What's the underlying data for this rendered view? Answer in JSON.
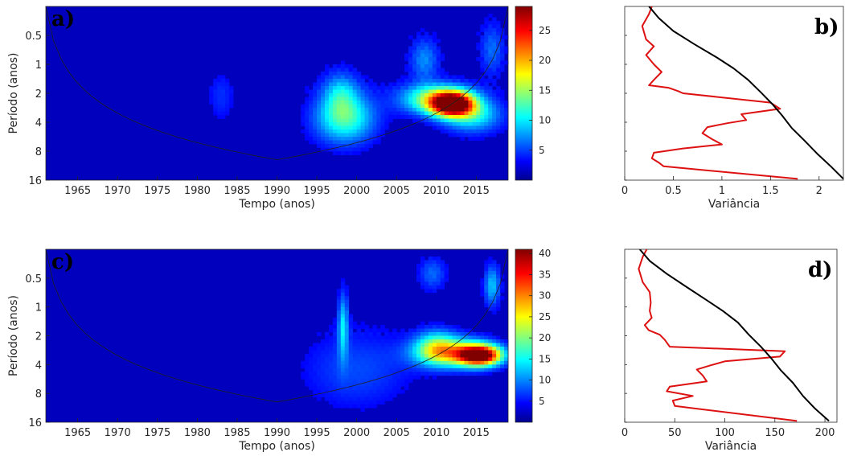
{
  "chart_data": [
    {
      "panel": "a)",
      "type": "heatmap",
      "xlabel": "Tempo (anos)",
      "ylabel": "Período (anos)",
      "xticks": [
        1965,
        1970,
        1975,
        1980,
        1985,
        1990,
        1995,
        2000,
        2005,
        2010,
        2015
      ],
      "xlim": [
        1961,
        2019
      ],
      "yticks": [
        0.5,
        1,
        2,
        4,
        8,
        16
      ],
      "ylim": [
        0.25,
        16
      ],
      "yscale": "log2",
      "colorbar": {
        "ticks": [
          5,
          10,
          15,
          20,
          25
        ],
        "lim": [
          0,
          29
        ]
      },
      "hotspots": [
        {
          "x": 2012,
          "period": 2.6,
          "power": 29,
          "sx": 1.8,
          "sy": 0.28
        },
        {
          "x": 2010,
          "period": 2.3,
          "power": 14,
          "sx": 3.0,
          "sy": 0.35
        },
        {
          "x": 1998.5,
          "period": 3.6,
          "power": 11,
          "sx": 2.6,
          "sy": 0.6
        },
        {
          "x": 1998,
          "period": 2.0,
          "power": 6,
          "sx": 1.5,
          "sy": 0.5
        },
        {
          "x": 2014.5,
          "period": 3.4,
          "power": 9,
          "sx": 2.5,
          "sy": 0.4
        },
        {
          "x": 2008.5,
          "period": 0.9,
          "power": 5,
          "sx": 1.2,
          "sy": 0.5
        },
        {
          "x": 2017,
          "period": 0.7,
          "power": 4,
          "sx": 1.0,
          "sy": 0.6
        },
        {
          "x": 1983,
          "period": 2.2,
          "power": 2.5,
          "sx": 1.2,
          "sy": 0.6
        }
      ]
    },
    {
      "panel": "b)",
      "type": "line",
      "xlabel": "Variância",
      "xticks": [
        0,
        0.5,
        1,
        1.5,
        2
      ],
      "xlim": [
        0,
        2.25
      ],
      "ylim": [
        0.25,
        16
      ],
      "yscale": "log2",
      "series": [
        {
          "color": "#dd1111",
          "points": [
            [
              0.28,
              0.25
            ],
            [
              0.25,
              0.3
            ],
            [
              0.18,
              0.4
            ],
            [
              0.22,
              0.55
            ],
            [
              0.3,
              0.65
            ],
            [
              0.22,
              0.8
            ],
            [
              0.3,
              1.0
            ],
            [
              0.38,
              1.2
            ],
            [
              0.3,
              1.45
            ],
            [
              0.25,
              1.65
            ],
            [
              0.45,
              1.75
            ],
            [
              0.55,
              1.9
            ],
            [
              0.6,
              2.0
            ],
            [
              1.5,
              2.5
            ],
            [
              1.6,
              2.9
            ],
            [
              1.2,
              3.3
            ],
            [
              1.25,
              3.8
            ],
            [
              1.05,
              4.1
            ],
            [
              0.85,
              4.5
            ],
            [
              0.8,
              5.2
            ],
            [
              0.9,
              6.0
            ],
            [
              1.0,
              6.8
            ],
            [
              0.6,
              7.5
            ],
            [
              0.3,
              8.3
            ],
            [
              0.28,
              9.5
            ],
            [
              0.35,
              10.5
            ],
            [
              0.4,
              11.5
            ],
            [
              1.78,
              15.5
            ]
          ]
        },
        {
          "color": "#000000",
          "points": [
            [
              0.25,
              0.25
            ],
            [
              0.35,
              0.33
            ],
            [
              0.5,
              0.45
            ],
            [
              0.72,
              0.62
            ],
            [
              0.95,
              0.85
            ],
            [
              1.12,
              1.1
            ],
            [
              1.27,
              1.45
            ],
            [
              1.4,
              1.95
            ],
            [
              1.52,
              2.6
            ],
            [
              1.62,
              3.4
            ],
            [
              1.72,
              4.6
            ],
            [
              1.85,
              6.2
            ],
            [
              1.98,
              8.5
            ],
            [
              2.12,
              11.5
            ],
            [
              2.25,
              15.5
            ]
          ]
        }
      ]
    },
    {
      "panel": "c)",
      "type": "heatmap",
      "xlabel": "Tempo (anos)",
      "ylabel": "Período (anos)",
      "xticks": [
        1965,
        1970,
        1975,
        1980,
        1985,
        1990,
        1995,
        2000,
        2005,
        2010,
        2015
      ],
      "xlim": [
        1961,
        2019
      ],
      "yticks": [
        0.5,
        1,
        2,
        4,
        8,
        16
      ],
      "ylim": [
        0.25,
        16
      ],
      "yscale": "log2",
      "colorbar": {
        "ticks": [
          5,
          10,
          15,
          20,
          25,
          30,
          35,
          40
        ],
        "lim": [
          0,
          41
        ]
      },
      "hotspots": [
        {
          "x": 2015.5,
          "period": 3.2,
          "power": 41,
          "sx": 1.9,
          "sy": 0.25
        },
        {
          "x": 2012,
          "period": 3.0,
          "power": 20,
          "sx": 3.2,
          "sy": 0.35
        },
        {
          "x": 2010,
          "period": 2.6,
          "power": 12,
          "sx": 1.8,
          "sy": 0.4
        },
        {
          "x": 1998.3,
          "period": 1.6,
          "power": 11,
          "sx": 0.45,
          "sy": 0.8
        },
        {
          "x": 2017,
          "period": 0.6,
          "power": 10,
          "sx": 0.7,
          "sy": 0.5
        },
        {
          "x": 2009.5,
          "period": 0.45,
          "power": 6,
          "sx": 1.2,
          "sy": 0.4
        },
        {
          "x": 2000,
          "period": 4.5,
          "power": 5,
          "sx": 5.0,
          "sy": 1.0
        }
      ]
    },
    {
      "panel": "d)",
      "type": "line",
      "xlabel": "Variância",
      "xticks": [
        0,
        50,
        100,
        150,
        200
      ],
      "xlim": [
        0,
        212
      ],
      "ylim": [
        0.25,
        16
      ],
      "yscale": "log2",
      "series": [
        {
          "color": "#dd1111",
          "points": [
            [
              22,
              0.25
            ],
            [
              18,
              0.3
            ],
            [
              14,
              0.4
            ],
            [
              18,
              0.55
            ],
            [
              25,
              0.7
            ],
            [
              26,
              0.9
            ],
            [
              25,
              1.1
            ],
            [
              27,
              1.3
            ],
            [
              20,
              1.55
            ],
            [
              24,
              1.75
            ],
            [
              35,
              1.95
            ],
            [
              40,
              2.2
            ],
            [
              45,
              2.6
            ],
            [
              160,
              2.9
            ],
            [
              155,
              3.3
            ],
            [
              100,
              3.7
            ],
            [
              85,
              4.1
            ],
            [
              72,
              4.5
            ],
            [
              78,
              5.2
            ],
            [
              82,
              6.0
            ],
            [
              45,
              6.8
            ],
            [
              42,
              7.6
            ],
            [
              68,
              8.5
            ],
            [
              48,
              9.5
            ],
            [
              50,
              10.8
            ],
            [
              70,
              11.5
            ],
            [
              172,
              15.5
            ]
          ]
        },
        {
          "color": "#000000",
          "points": [
            [
              15,
              0.25
            ],
            [
              25,
              0.33
            ],
            [
              42,
              0.45
            ],
            [
              62,
              0.62
            ],
            [
              82,
              0.85
            ],
            [
              98,
              1.1
            ],
            [
              113,
              1.45
            ],
            [
              124,
              1.95
            ],
            [
              136,
              2.6
            ],
            [
              146,
              3.4
            ],
            [
              156,
              4.6
            ],
            [
              168,
              6.2
            ],
            [
              178,
              8.5
            ],
            [
              190,
              11.5
            ],
            [
              204,
              15.5
            ]
          ]
        }
      ]
    }
  ]
}
